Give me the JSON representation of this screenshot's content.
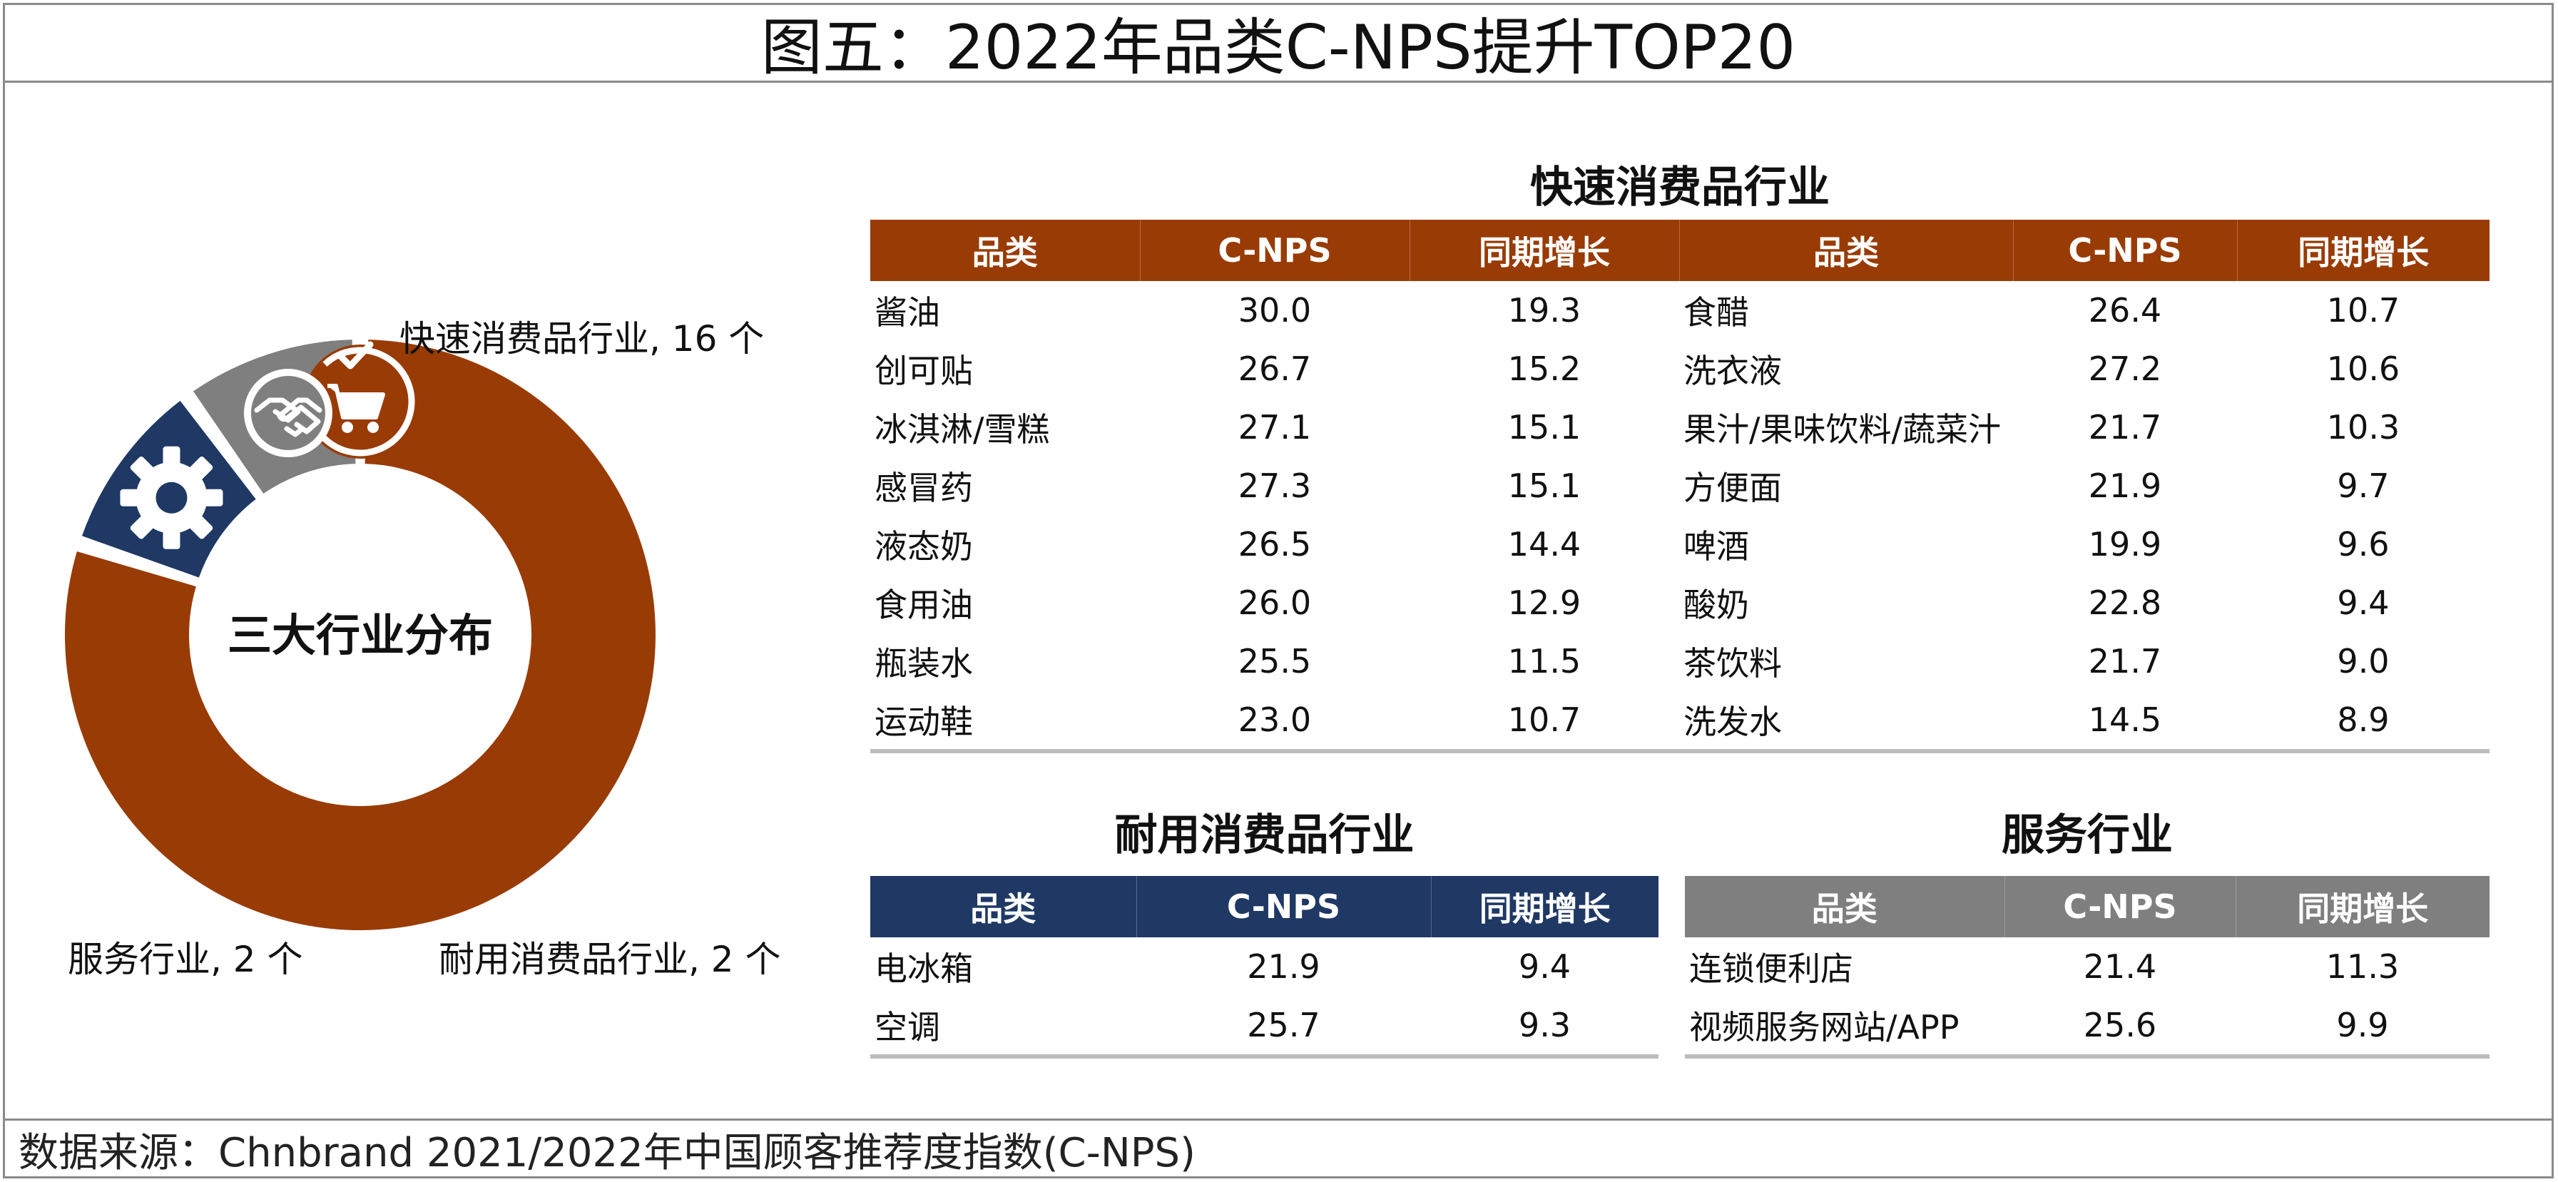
{
  "title": "图五：2022年品类C-NPS提升TOP20",
  "source": "数据来源：Chnbrand 2021/2022年中国顾客推荐度指数(C-NPS)",
  "colors": {
    "fmcg": "#993b05",
    "durable": "#1f3864",
    "service": "#7f7f7f"
  },
  "chart_data": [
    {
      "type": "pie",
      "title": "三大行业分布",
      "categories": [
        "快速消费品行业",
        "耐用消费品行业",
        "服务行业"
      ],
      "values": [
        16,
        2,
        2
      ],
      "labels": [
        "快速消费品行业, 16 个",
        "耐用消费品行业, 2 个",
        "服务行业, 2 个"
      ],
      "icons": [
        "shopping-cart-icon",
        "gear-icon",
        "handshake-icon"
      ]
    },
    {
      "type": "table",
      "title": "快速消费品行业",
      "columns": [
        "品类",
        "C-NPS",
        "同期增长",
        "品类",
        "C-NPS",
        "同期增长"
      ],
      "rows": [
        [
          "酱油",
          "30.0",
          "19.3",
          "食醋",
          "26.4",
          "10.7"
        ],
        [
          "创可贴",
          "26.7",
          "15.2",
          "洗衣液",
          "27.2",
          "10.6"
        ],
        [
          "冰淇淋/雪糕",
          "27.1",
          "15.1",
          "果汁/果味饮料/蔬菜汁",
          "21.7",
          "10.3"
        ],
        [
          "感冒药",
          "27.3",
          "15.1",
          "方便面",
          "21.9",
          "9.7"
        ],
        [
          "液态奶",
          "26.5",
          "14.4",
          "啤酒",
          "19.9",
          "9.6"
        ],
        [
          "食用油",
          "26.0",
          "12.9",
          "酸奶",
          "22.8",
          "9.4"
        ],
        [
          "瓶装水",
          "25.5",
          "11.5",
          "茶饮料",
          "21.7",
          "9.0"
        ],
        [
          "运动鞋",
          "23.0",
          "10.7",
          "洗发水",
          "14.5",
          "8.9"
        ]
      ]
    },
    {
      "type": "table",
      "title": "耐用消费品行业",
      "columns": [
        "品类",
        "C-NPS",
        "同期增长"
      ],
      "rows": [
        [
          "电冰箱",
          "21.9",
          "9.4"
        ],
        [
          "空调",
          "25.7",
          "9.3"
        ]
      ]
    },
    {
      "type": "table",
      "title": "服务行业",
      "columns": [
        "品类",
        "C-NPS",
        "同期增长"
      ],
      "rows": [
        [
          "连锁便利店",
          "21.4",
          "11.3"
        ],
        [
          "视频服务网站/APP",
          "25.6",
          "9.9"
        ]
      ]
    }
  ]
}
